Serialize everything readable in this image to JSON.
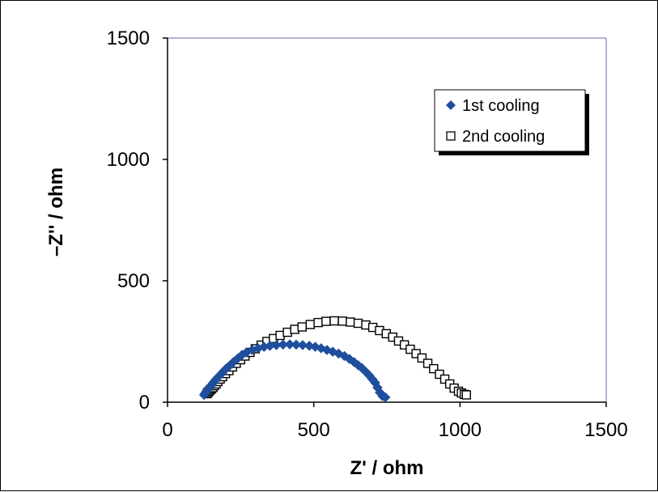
{
  "chart_data": {
    "type": "scatter",
    "xlabel": "Z' / ohm",
    "ylabel": "–Z'' / ohm",
    "xlim": [
      0,
      1500
    ],
    "ylim": [
      0,
      1500
    ],
    "xticks": [
      "0",
      "500",
      "1000",
      "1500"
    ],
    "yticks": [
      "0",
      "500",
      "1000",
      "1500"
    ],
    "grid": false,
    "legend_position": "top-right",
    "colors": {
      "series1": "#1f4e9e",
      "series2": "#000000",
      "axes": "#9a9ac8"
    },
    "series": [
      {
        "name": "1st cooling",
        "marker": "diamond-filled",
        "x": [
          125,
          128,
          130,
          133,
          136,
          140,
          145,
          150,
          156,
          163,
          170,
          180,
          190,
          200,
          212,
          225,
          240,
          255,
          270,
          290,
          310,
          330,
          350,
          372,
          395,
          418,
          440,
          462,
          485,
          505,
          525,
          545,
          565,
          585,
          605,
          622,
          638,
          652,
          665,
          678,
          690,
          700,
          710,
          718,
          726,
          735,
          745
        ],
        "y": [
          30,
          35,
          40,
          45,
          50,
          55,
          62,
          70,
          80,
          90,
          100,
          112,
          125,
          138,
          150,
          165,
          180,
          195,
          205,
          215,
          222,
          228,
          232,
          235,
          237,
          238,
          237,
          235,
          232,
          228,
          222,
          215,
          208,
          200,
          190,
          178,
          165,
          152,
          140,
          125,
          110,
          95,
          80,
          60,
          40,
          25,
          20
        ]
      },
      {
        "name": "2nd cooling",
        "marker": "square-open",
        "x": [
          135,
          138,
          142,
          146,
          150,
          155,
          160,
          166,
          172,
          180,
          188,
          198,
          210,
          222,
          235,
          250,
          265,
          282,
          300,
          320,
          340,
          362,
          385,
          410,
          435,
          460,
          488,
          515,
          542,
          570,
          598,
          625,
          652,
          678,
          702,
          725,
          748,
          770,
          790,
          810,
          830,
          850,
          870,
          890,
          910,
          930,
          948,
          965,
          980,
          995,
          1005,
          1015,
          1022
        ],
        "y": [
          35,
          40,
          45,
          50,
          55,
          60,
          68,
          75,
          85,
          95,
          105,
          118,
          130,
          145,
          160,
          175,
          190,
          205,
          220,
          235,
          250,
          262,
          275,
          288,
          300,
          310,
          320,
          328,
          333,
          335,
          334,
          330,
          325,
          318,
          308,
          295,
          282,
          268,
          252,
          236,
          218,
          200,
          182,
          160,
          138,
          115,
          95,
          75,
          58,
          45,
          38,
          32,
          30
        ]
      }
    ]
  }
}
